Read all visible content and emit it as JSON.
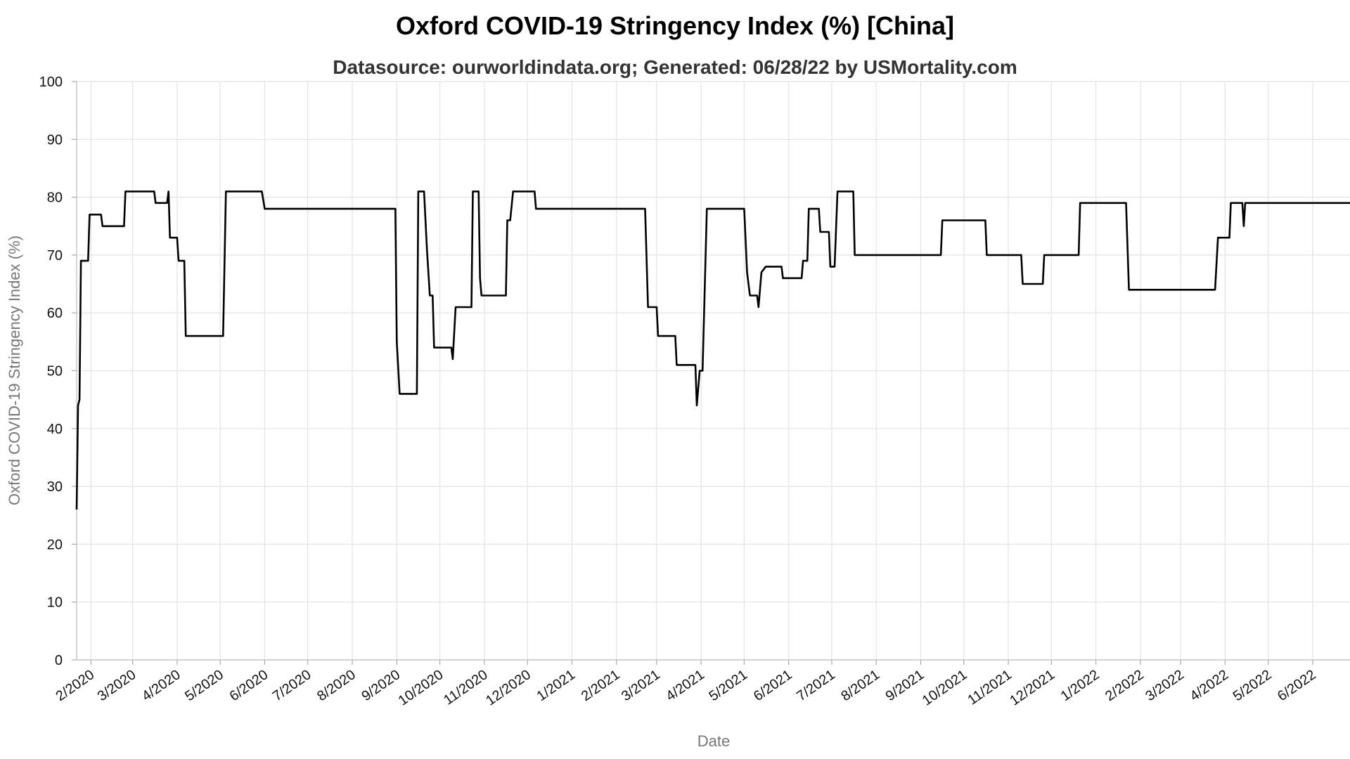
{
  "chart_data": {
    "type": "line",
    "title": "Oxford COVID-19 Stringency Index (%) [China]",
    "subtitle": "Datasource: ourworldindata.org; Generated: 06/28/22 by USMortality.com",
    "xlabel": "Date",
    "ylabel": "Oxford COVID-19 Stringency Index (%)",
    "ylim": [
      0,
      100
    ],
    "yticks": [
      0,
      10,
      20,
      30,
      40,
      50,
      60,
      70,
      80,
      90,
      100
    ],
    "xlim": [
      "2020-01-22",
      "2022-06-27"
    ],
    "xtick_dates": [
      "2020-02-01",
      "2020-03-01",
      "2020-04-01",
      "2020-05-01",
      "2020-06-01",
      "2020-07-01",
      "2020-08-01",
      "2020-09-01",
      "2020-10-01",
      "2020-11-01",
      "2020-12-01",
      "2021-01-01",
      "2021-02-01",
      "2021-03-01",
      "2021-04-01",
      "2021-05-01",
      "2021-06-01",
      "2021-07-01",
      "2021-08-01",
      "2021-09-01",
      "2021-10-01",
      "2021-11-01",
      "2021-12-01",
      "2022-01-01",
      "2022-02-01",
      "2022-03-01",
      "2022-04-01",
      "2022-05-01",
      "2022-06-01"
    ],
    "xtick_labels": [
      "2/2020",
      "3/2020",
      "4/2020",
      "5/2020",
      "6/2020",
      "7/2020",
      "8/2020",
      "9/2020",
      "10/2020",
      "11/2020",
      "12/2020",
      "1/2021",
      "2/2021",
      "3/2021",
      "4/2021",
      "5/2021",
      "6/2021",
      "7/2021",
      "8/2021",
      "9/2021",
      "10/2021",
      "11/2021",
      "12/2021",
      "1/2022",
      "2/2022",
      "3/2022",
      "4/2022",
      "5/2022",
      "6/2022"
    ],
    "grid": true,
    "series": [
      {
        "color": "#000000",
        "points": [
          [
            "2020-01-22",
            26
          ],
          [
            "2020-01-23",
            44
          ],
          [
            "2020-01-24",
            45
          ],
          [
            "2020-01-25",
            69
          ],
          [
            "2020-01-30",
            69
          ],
          [
            "2020-01-31",
            77
          ],
          [
            "2020-02-08",
            77
          ],
          [
            "2020-02-09",
            75
          ],
          [
            "2020-02-24",
            75
          ],
          [
            "2020-02-25",
            81
          ],
          [
            "2020-03-16",
            81
          ],
          [
            "2020-03-17",
            79
          ],
          [
            "2020-03-25",
            79
          ],
          [
            "2020-03-26",
            81
          ],
          [
            "2020-03-27",
            73
          ],
          [
            "2020-04-01",
            73
          ],
          [
            "2020-04-02",
            69
          ],
          [
            "2020-04-06",
            69
          ],
          [
            "2020-04-07",
            56
          ],
          [
            "2020-05-03",
            56
          ],
          [
            "2020-05-05",
            81
          ],
          [
            "2020-05-30",
            81
          ],
          [
            "2020-06-01",
            78
          ],
          [
            "2020-08-31",
            78
          ],
          [
            "2020-09-01",
            55
          ],
          [
            "2020-09-03",
            46
          ],
          [
            "2020-09-15",
            46
          ],
          [
            "2020-09-16",
            81
          ],
          [
            "2020-09-20",
            81
          ],
          [
            "2020-09-22",
            71
          ],
          [
            "2020-09-24",
            63
          ],
          [
            "2020-09-26",
            63
          ],
          [
            "2020-09-27",
            54
          ],
          [
            "2020-10-09",
            54
          ],
          [
            "2020-10-10",
            52
          ],
          [
            "2020-10-12",
            61
          ],
          [
            "2020-10-23",
            61
          ],
          [
            "2020-10-24",
            81
          ],
          [
            "2020-10-28",
            81
          ],
          [
            "2020-10-29",
            66
          ],
          [
            "2020-10-30",
            63
          ],
          [
            "2020-11-16",
            63
          ],
          [
            "2020-11-17",
            76
          ],
          [
            "2020-11-19",
            76
          ],
          [
            "2020-11-21",
            81
          ],
          [
            "2020-12-06",
            81
          ],
          [
            "2020-12-07",
            78
          ],
          [
            "2021-02-21",
            78
          ],
          [
            "2021-02-23",
            61
          ],
          [
            "2021-03-01",
            61
          ],
          [
            "2021-03-02",
            56
          ],
          [
            "2021-03-14",
            56
          ],
          [
            "2021-03-15",
            51
          ],
          [
            "2021-03-28",
            51
          ],
          [
            "2021-03-29",
            44
          ],
          [
            "2021-03-31",
            50
          ],
          [
            "2021-04-02",
            50
          ],
          [
            "2021-04-05",
            78
          ],
          [
            "2021-05-01",
            78
          ],
          [
            "2021-05-03",
            67
          ],
          [
            "2021-05-05",
            63
          ],
          [
            "2021-05-10",
            63
          ],
          [
            "2021-05-11",
            61
          ],
          [
            "2021-05-13",
            67
          ],
          [
            "2021-05-16",
            68
          ],
          [
            "2021-05-27",
            68
          ],
          [
            "2021-05-28",
            66
          ],
          [
            "2021-06-10",
            66
          ],
          [
            "2021-06-11",
            69
          ],
          [
            "2021-06-14",
            69
          ],
          [
            "2021-06-15",
            78
          ],
          [
            "2021-06-22",
            78
          ],
          [
            "2021-06-23",
            74
          ],
          [
            "2021-06-29",
            74
          ],
          [
            "2021-06-30",
            68
          ],
          [
            "2021-07-03",
            68
          ],
          [
            "2021-07-05",
            81
          ],
          [
            "2021-07-16",
            81
          ],
          [
            "2021-07-17",
            70
          ],
          [
            "2021-09-15",
            70
          ],
          [
            "2021-09-16",
            76
          ],
          [
            "2021-10-16",
            76
          ],
          [
            "2021-10-17",
            70
          ],
          [
            "2021-11-10",
            70
          ],
          [
            "2021-11-11",
            65
          ],
          [
            "2021-11-25",
            65
          ],
          [
            "2021-11-26",
            70
          ],
          [
            "2021-12-20",
            70
          ],
          [
            "2021-12-21",
            79
          ],
          [
            "2022-01-22",
            79
          ],
          [
            "2022-01-24",
            64
          ],
          [
            "2022-03-25",
            64
          ],
          [
            "2022-03-27",
            73
          ],
          [
            "2022-04-04",
            73
          ],
          [
            "2022-04-05",
            79
          ],
          [
            "2022-04-13",
            79
          ],
          [
            "2022-04-14",
            75
          ],
          [
            "2022-04-15",
            79
          ],
          [
            "2022-06-27",
            79
          ]
        ]
      }
    ]
  }
}
